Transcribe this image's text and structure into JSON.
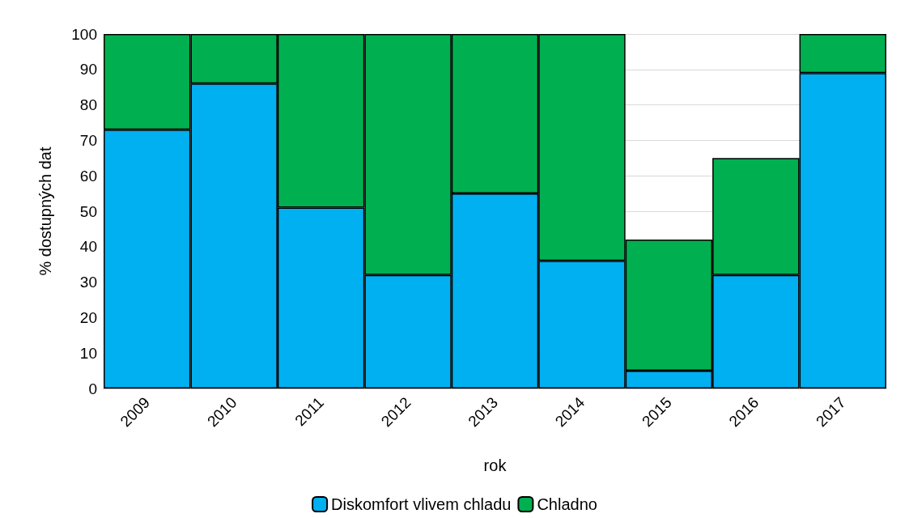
{
  "chart_data": {
    "type": "bar",
    "stacked": true,
    "xlabel": "rok",
    "ylabel": "% dostupných dat",
    "categories": [
      "2009",
      "2010",
      "2011",
      "2012",
      "2013",
      "2014",
      "2015",
      "2016",
      "2017"
    ],
    "series": [
      {
        "name": "Diskomfort vlivem chladu",
        "color": "#00b0f0",
        "values": [
          73,
          86,
          51,
          32,
          55,
          36,
          5,
          32,
          89
        ]
      },
      {
        "name": "Chladno",
        "color": "#00b050",
        "values": [
          27,
          14,
          49,
          68,
          45,
          64,
          37,
          33,
          11
        ]
      }
    ],
    "ylim": [
      0,
      100
    ],
    "yticks": [
      0,
      10,
      20,
      30,
      40,
      50,
      60,
      70,
      80,
      90,
      100
    ],
    "grid": "y",
    "legend": "bottom"
  }
}
